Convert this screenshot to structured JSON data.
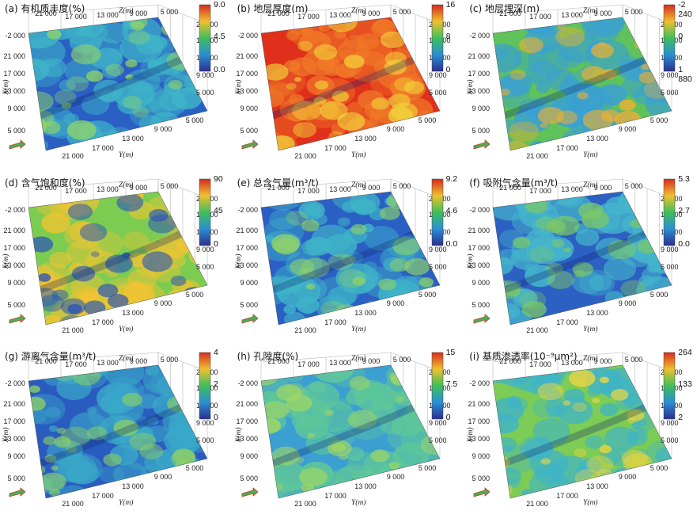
{
  "axes": {
    "z_label": "Z(m)",
    "x_label": "X(m)",
    "y_label": "Y(m)",
    "top_ticks": [
      "21 000",
      "17 000",
      "13 000",
      "9 000",
      "5 000"
    ],
    "left_ticks": [
      "-2 000",
      "21 000",
      "17 000",
      "13 000",
      "9 000",
      "5 000"
    ],
    "right_ticks": [
      "21 000",
      "17 000",
      "13 000",
      "9 000",
      "5 000"
    ],
    "bottom_ticks": [
      "21 000",
      "17 000",
      "13 000",
      "9 000",
      "5 000"
    ]
  },
  "chart_data": [
    {
      "type": "heatmap",
      "id": "a",
      "title": "(a)  有机质丰度(%)",
      "colorbar": {
        "max": "9.0",
        "mid": "4.5",
        "min": "0.0"
      },
      "colors": {
        "bg": "#2a5fc4",
        "mid": "#3fb4c8",
        "hot": "#8fd36a"
      }
    },
    {
      "type": "heatmap",
      "id": "b",
      "title": "(b)  地层厚度(m)",
      "colorbar": {
        "max": "16",
        "mid": "8",
        "min": "0"
      },
      "colors": {
        "bg": "#e0301c",
        "mid": "#f07a28",
        "hot": "#f2d63a"
      }
    },
    {
      "type": "heatmap",
      "id": "c",
      "title": "(c)  地层埋深(m)",
      "colorbar": {
        "max": "-2 240",
        "mid": "0",
        "min": "1 880"
      },
      "colors": {
        "bg": "#5fc25a",
        "mid": "#3aa0d4",
        "hot": "#f0b030"
      }
    },
    {
      "type": "heatmap",
      "id": "d",
      "title": "(d)  含气饱和度(%)",
      "colorbar": {
        "max": "90",
        "mid": "45",
        "min": "0"
      },
      "colors": {
        "bg": "#7ccc52",
        "mid": "#f1c432",
        "hot": "#2a54b8"
      }
    },
    {
      "type": "heatmap",
      "id": "e",
      "title": "(e)  总含气量(m³/t)",
      "colorbar": {
        "max": "9.2",
        "mid": "4.6",
        "min": "0.0"
      },
      "colors": {
        "bg": "#2a5fc4",
        "mid": "#3fb4c8",
        "hot": "#8fd36a"
      }
    },
    {
      "type": "heatmap",
      "id": "f",
      "title": "(f)  吸附气含量(m³/t)",
      "colorbar": {
        "max": "5.3",
        "mid": "2.7",
        "min": "0.0"
      },
      "colors": {
        "bg": "#2c60c2",
        "mid": "#45b6cc",
        "hot": "#7cc866"
      }
    },
    {
      "type": "heatmap",
      "id": "g",
      "title": "(g)  游离气含量(m³/t)",
      "colorbar": {
        "max": "4",
        "mid": "2",
        "min": "0"
      },
      "colors": {
        "bg": "#2a5cc0",
        "mid": "#3aa8c8",
        "hot": "#8cd066"
      }
    },
    {
      "type": "heatmap",
      "id": "h",
      "title": "(h)  孔隙度(%)",
      "colorbar": {
        "max": "15",
        "mid": "7.5",
        "min": "0"
      },
      "colors": {
        "bg": "#3c9fd2",
        "mid": "#5fc898",
        "hot": "#a4d860"
      }
    },
    {
      "type": "heatmap",
      "id": "i",
      "title": "(i)  基质渗透率(10⁻⁹μm²)",
      "colorbar": {
        "max": "264",
        "mid": "133",
        "min": "2"
      },
      "colors": {
        "bg": "#7ccc55",
        "mid": "#3fb4c8",
        "hot": "#f0d640"
      }
    }
  ]
}
